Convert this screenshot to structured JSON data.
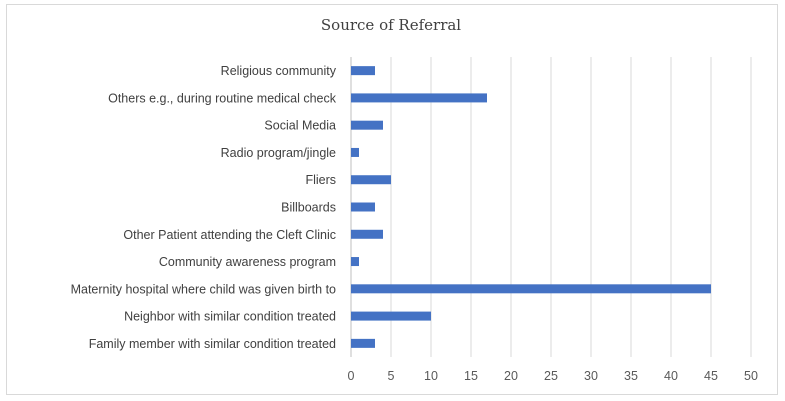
{
  "chart_data": {
    "type": "bar",
    "orientation": "horizontal",
    "title": "Source of Referral",
    "xlabel": "",
    "ylabel": "",
    "xlim": [
      0,
      50
    ],
    "x_ticks": [
      0,
      5,
      10,
      15,
      20,
      25,
      30,
      35,
      40,
      45,
      50
    ],
    "grid": true,
    "legend": "none",
    "bar_color": "#4472c4",
    "categories": [
      "Religious community",
      "Others e.g., during routine medical check",
      "Social Media",
      "Radio program/jingle",
      "Fliers",
      "Billboards",
      "Other Patient attending the Cleft Clinic",
      "Community awareness program",
      "Maternity hospital where child was given birth to",
      "Neighbor with similar condition treated",
      "Family member with similar condition treated"
    ],
    "values": [
      3,
      17,
      4,
      1,
      5,
      3,
      4,
      1,
      45,
      10,
      3
    ]
  }
}
